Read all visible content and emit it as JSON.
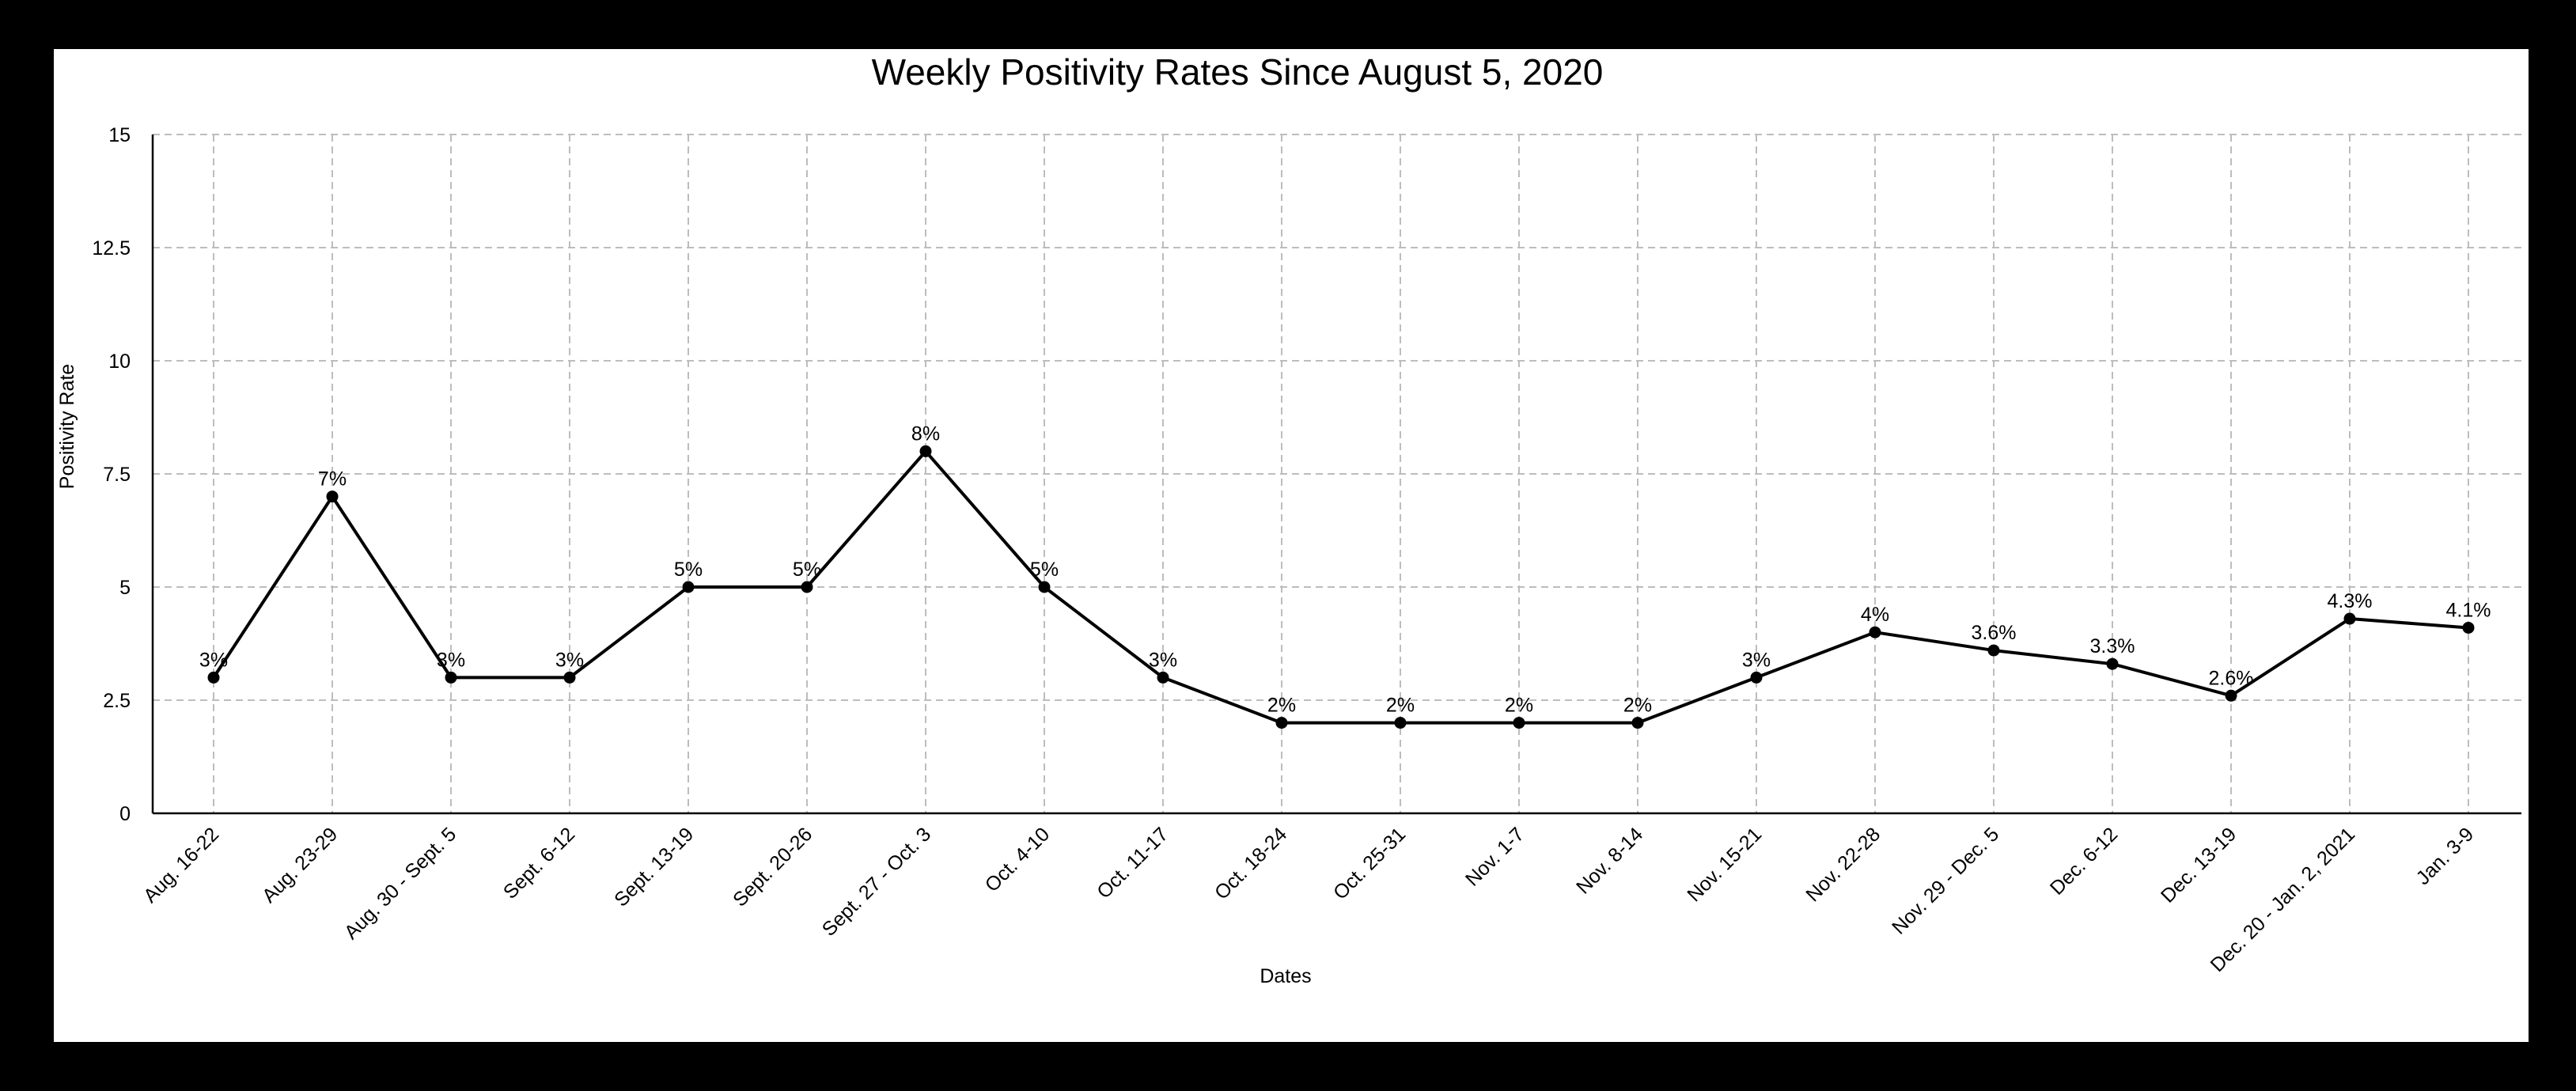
{
  "colors": {
    "frame": "#000000",
    "background": "#ffffff",
    "line": "#000000",
    "grid": "#bdbdbd"
  },
  "chart_data": {
    "type": "line",
    "title": "Weekly Positivity Rates Since August 5, 2020",
    "xlabel": "Dates",
    "ylabel": "Positivity Rate",
    "ylim": [
      0,
      15
    ],
    "yticks": [
      "0",
      "2.5",
      "5",
      "7.5",
      "10",
      "12.5",
      "15"
    ],
    "grid": true,
    "categories": [
      "Aug. 16-22",
      "Aug. 23-29",
      "Aug. 30 - Sept. 5",
      "Sept. 6-12",
      "Sept. 13-19",
      "Sept. 20-26",
      "Sept. 27 - Oct. 3",
      "Oct. 4-10",
      "Oct. 11-17",
      "Oct. 18-24",
      "Oct. 25-31",
      "Nov. 1-7",
      "Nov. 8-14",
      "Nov. 15-21",
      "Nov. 22-28",
      "Nov. 29 - Dec. 5",
      "Dec. 6-12",
      "Dec. 13-19",
      "Dec. 20 - Jan. 2, 2021",
      "Jan. 3-9"
    ],
    "series": [
      {
        "values": [
          3,
          7,
          3,
          3,
          5,
          5,
          8,
          5,
          3,
          2,
          2,
          2,
          2,
          3,
          4,
          3.6,
          3.3,
          2.6,
          4.3,
          4.1
        ],
        "labels": [
          "3%",
          "7%",
          "3%",
          "3%",
          "5%",
          "5%",
          "8%",
          "5%",
          "3%",
          "2%",
          "2%",
          "2%",
          "2%",
          "3%",
          "4%",
          "3.6%",
          "3.3%",
          "2.6%",
          "4.3%",
          "4.1%"
        ]
      }
    ]
  }
}
